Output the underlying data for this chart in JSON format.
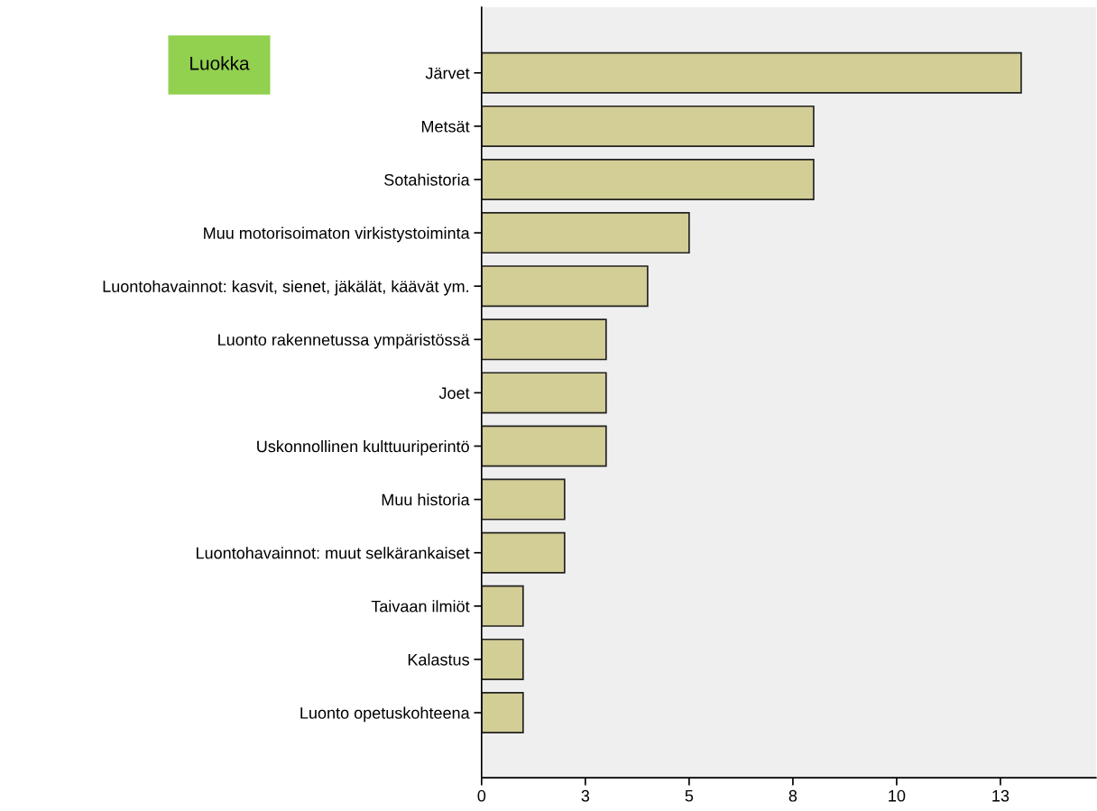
{
  "chart_data": {
    "type": "bar",
    "orientation": "horizontal",
    "categories": [
      "Järvet",
      "Metsät",
      "Sotahistoria",
      "Muu motorisoimaton virkistystoiminta",
      "Luontohavainnot: kasvit, sienet, jäkälät, käävät ym.",
      "Luonto rakennetussa ympäristössä",
      "Joet",
      "Uskonnollinen kulttuuriperintö",
      "Muu historia",
      "Luontohavainnot: muut selkärankaiset",
      "Taivaan ilmiöt",
      "Kalastus",
      "Luonto opetuskohteena"
    ],
    "values": [
      13,
      8,
      8,
      5,
      4,
      3,
      3,
      3,
      2,
      2,
      1,
      1,
      1
    ],
    "color": "#d3cd96",
    "xlim": [
      0,
      14.8
    ],
    "xticks": [
      0,
      {
        "value": 2.5,
        "label": "3"
      },
      5,
      {
        "value": 7.5,
        "label": "8"
      },
      10,
      {
        "value": 12.5,
        "label": "13"
      }
    ],
    "grid": false,
    "annotations": [
      "Luokka"
    ]
  }
}
